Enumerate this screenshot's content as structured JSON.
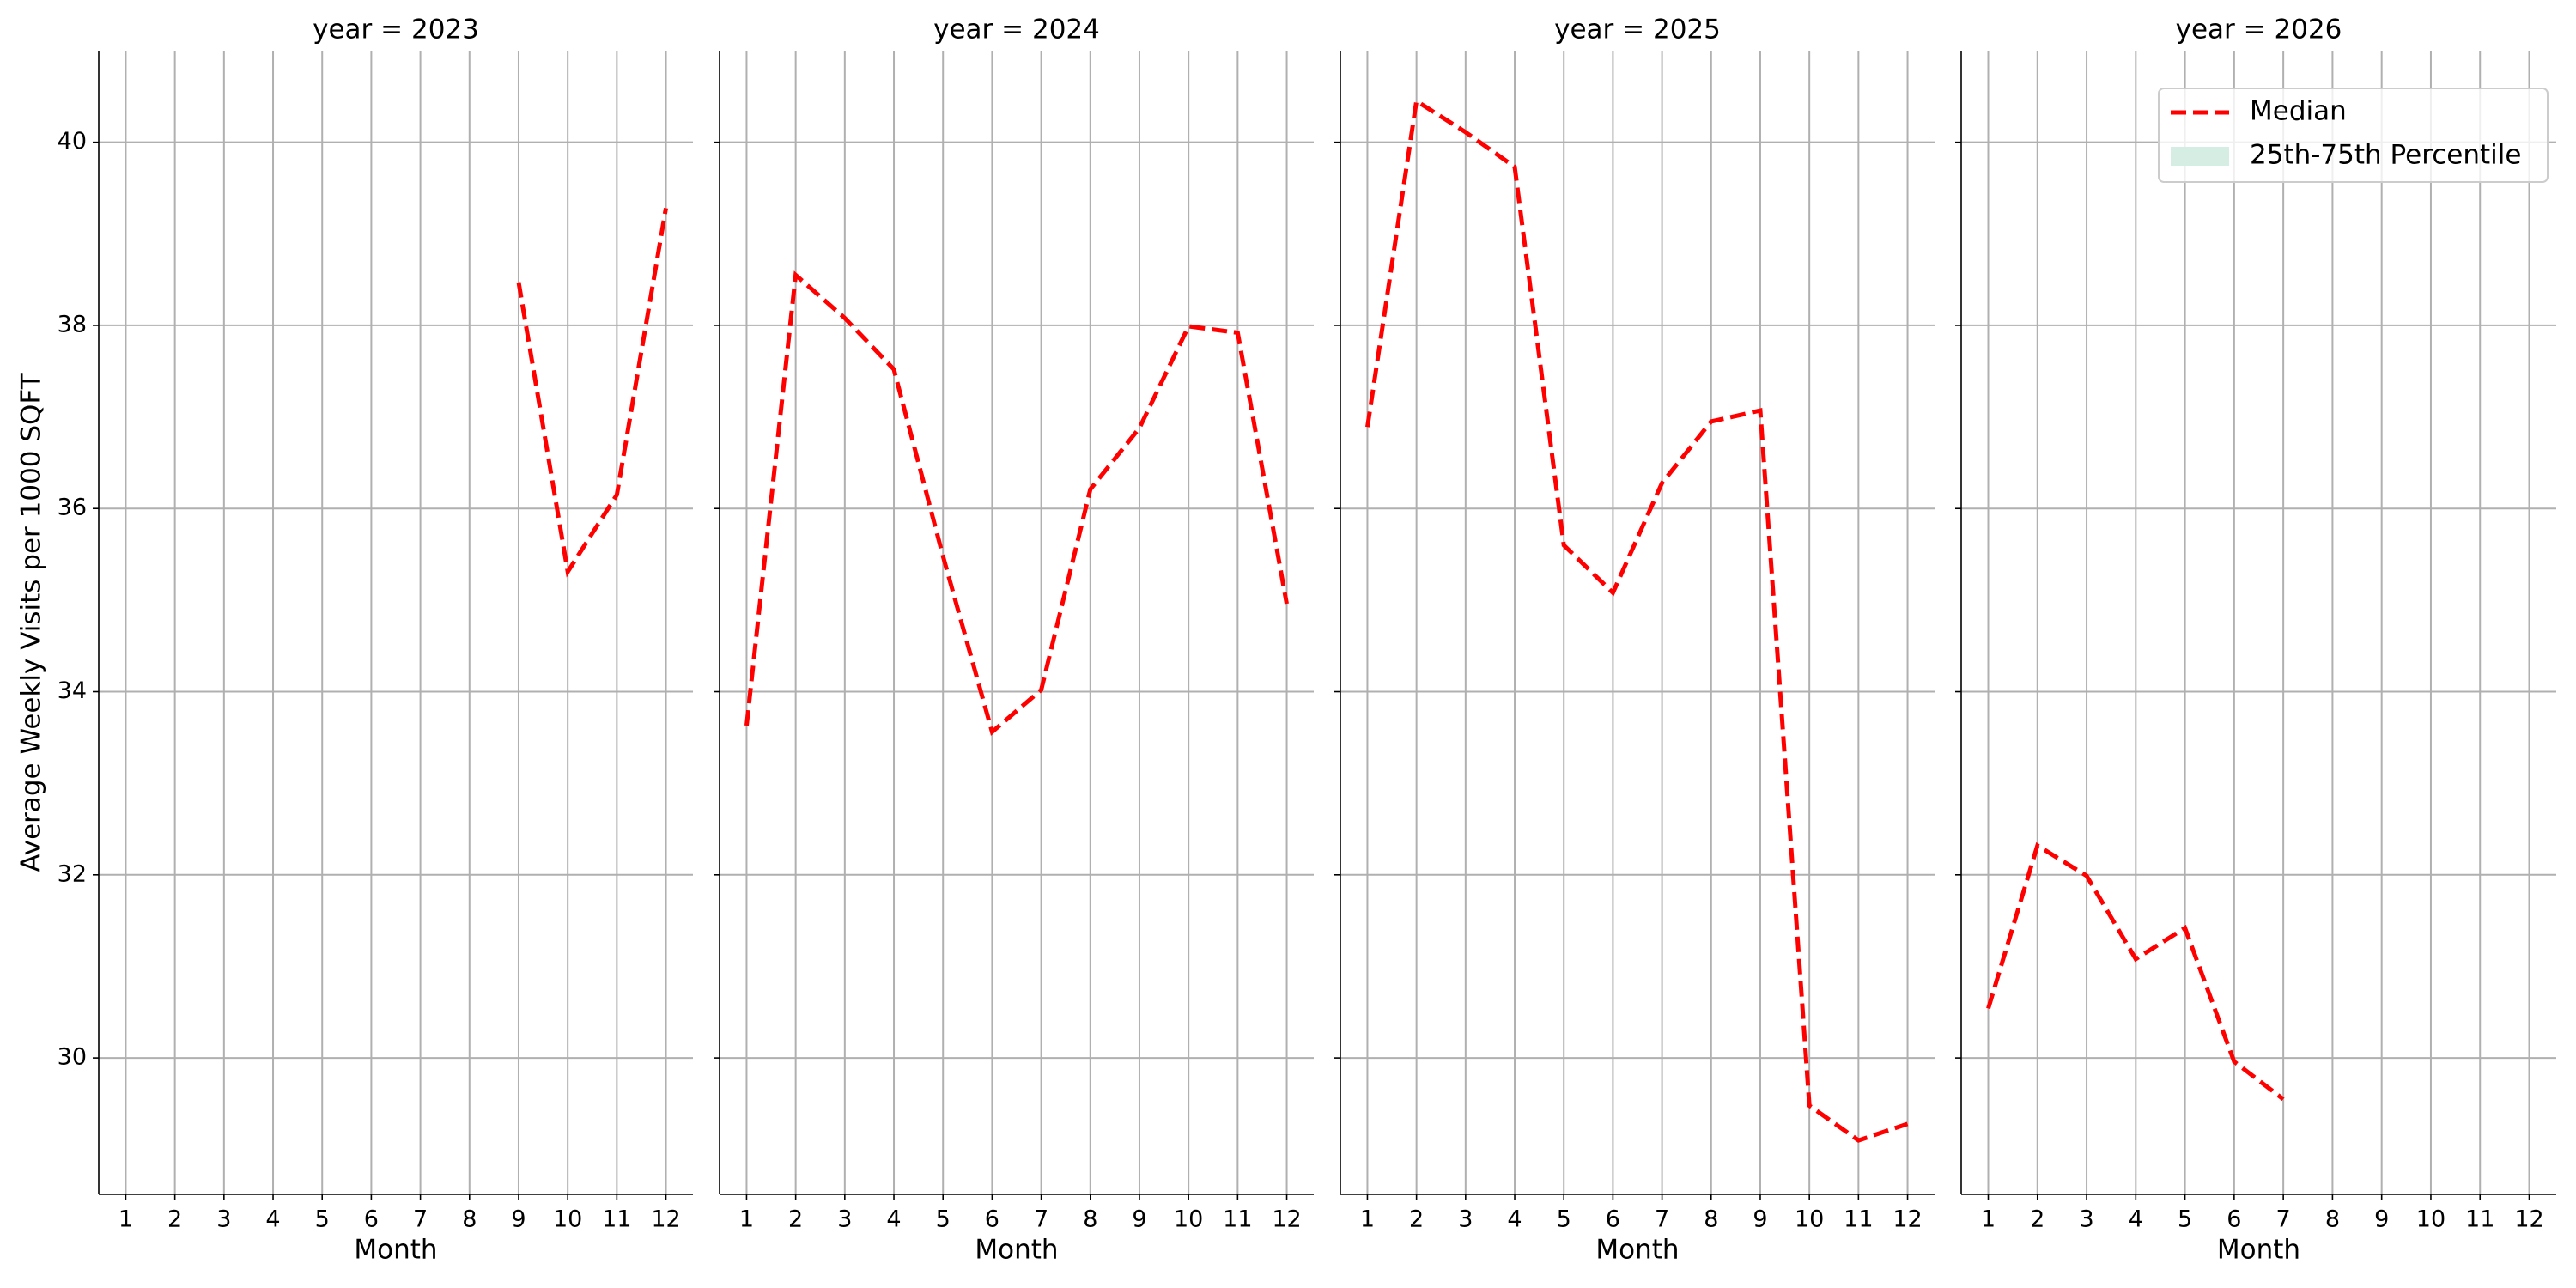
{
  "chart_data": [
    {
      "type": "line",
      "title": "year = 2023",
      "xlabel": "Month",
      "ylabel": "Average Weekly Visits per 1000 SQFT",
      "ytick_labels": true,
      "x": [
        1,
        2,
        3,
        4,
        5,
        6,
        7,
        8,
        9,
        10,
        11,
        12
      ],
      "xlim": [
        0.45,
        12.55
      ],
      "xticks": [
        1,
        2,
        3,
        4,
        5,
        6,
        7,
        8,
        9,
        10,
        11,
        12
      ],
      "ylim": [
        28.51,
        41.0
      ],
      "yticks": [
        30,
        32,
        34,
        36,
        38,
        40
      ],
      "grid": true,
      "series": [
        {
          "name": "Median",
          "color": "#ff0000",
          "values": [
            null,
            null,
            null,
            null,
            null,
            null,
            null,
            null,
            38.47,
            35.31,
            36.15,
            39.28
          ]
        }
      ]
    },
    {
      "type": "line",
      "title": "year = 2024",
      "xlabel": "Month",
      "ytick_labels": false,
      "x": [
        1,
        2,
        3,
        4,
        5,
        6,
        7,
        8,
        9,
        10,
        11,
        12
      ],
      "xlim": [
        0.45,
        12.55
      ],
      "xticks": [
        1,
        2,
        3,
        4,
        5,
        6,
        7,
        8,
        9,
        10,
        11,
        12
      ],
      "ylim": [
        28.51,
        41.0
      ],
      "yticks": [
        30,
        32,
        34,
        36,
        38,
        40
      ],
      "grid": true,
      "series": [
        {
          "name": "Median",
          "color": "#ff0000",
          "values": [
            33.63,
            38.55,
            38.08,
            37.52,
            35.48,
            33.56,
            34.02,
            36.21,
            36.88,
            37.99,
            37.92,
            34.96
          ]
        }
      ]
    },
    {
      "type": "line",
      "title": "year = 2025",
      "xlabel": "Month",
      "ytick_labels": false,
      "x": [
        1,
        2,
        3,
        4,
        5,
        6,
        7,
        8,
        9,
        10,
        11,
        12
      ],
      "xlim": [
        0.45,
        12.55
      ],
      "xticks": [
        1,
        2,
        3,
        4,
        5,
        6,
        7,
        8,
        9,
        10,
        11,
        12
      ],
      "ylim": [
        28.51,
        41.0
      ],
      "yticks": [
        30,
        32,
        34,
        36,
        38,
        40
      ],
      "grid": true,
      "series": [
        {
          "name": "Median",
          "color": "#ff0000",
          "values": [
            36.89,
            40.45,
            40.11,
            39.73,
            35.6,
            35.08,
            36.28,
            36.95,
            37.07,
            29.48,
            29.1,
            29.28
          ]
        }
      ]
    },
    {
      "type": "line",
      "title": "year = 2026",
      "xlabel": "Month",
      "ytick_labels": false,
      "x": [
        1,
        2,
        3,
        4,
        5,
        6,
        7,
        8,
        9,
        10,
        11,
        12
      ],
      "xlim": [
        0.45,
        12.55
      ],
      "xticks": [
        1,
        2,
        3,
        4,
        5,
        6,
        7,
        8,
        9,
        10,
        11,
        12
      ],
      "ylim": [
        28.51,
        41.0
      ],
      "yticks": [
        30,
        32,
        34,
        36,
        38,
        40
      ],
      "grid": true,
      "series": [
        {
          "name": "Median",
          "color": "#ff0000",
          "values": [
            30.54,
            32.32,
            31.99,
            31.08,
            31.42,
            29.96,
            29.55,
            null,
            null,
            null,
            null,
            null
          ]
        }
      ],
      "legend": {
        "loc": "upper right",
        "entries": [
          {
            "name": "Median",
            "color": "#ff0000",
            "style": "dashed"
          },
          {
            "name": "25th-75th Percentile",
            "color": "#d6ede3",
            "style": "patch"
          }
        ]
      }
    }
  ]
}
